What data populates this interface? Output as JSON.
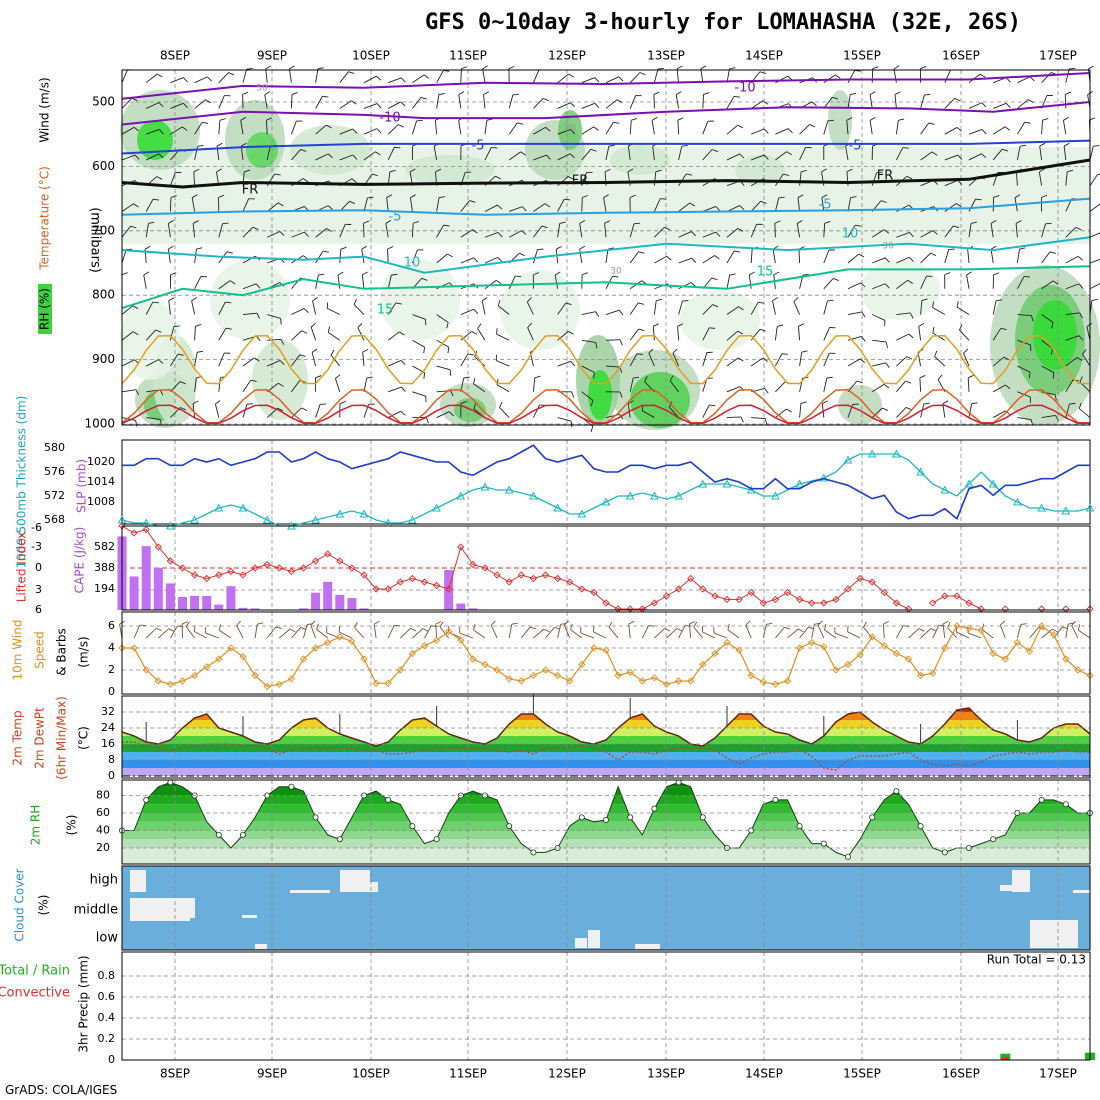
{
  "title": "GFS 0~10day 3-hourly for LOMAHASHA (32E, 26S)",
  "footer": "GrADS: COLA/IGES",
  "run_total_label": "Run Total = 0.13",
  "chart_data": [
    {
      "type": "contour",
      "panel": "upper-air",
      "ylabel": "(millibars)",
      "side_labels": [
        "RH (%)",
        "Temperature (°C)",
        "Wind (m/s)"
      ],
      "x_ticks": [
        "8SEP",
        "9SEP",
        "10SEP",
        "11SEP",
        "12SEP",
        "13SEP",
        "14SEP",
        "15SEP",
        "16SEP",
        "17SEP"
      ],
      "y_ticks": [
        500,
        600,
        700,
        800,
        900,
        1000
      ],
      "ylim": [
        1000,
        450
      ],
      "isotherm_labels": [
        "-10",
        "-10",
        "-5",
        "-5",
        "FR",
        "FR",
        "FR",
        "-5",
        "-5",
        "10",
        "10",
        "15",
        "15",
        "50",
        "30",
        "30",
        "30"
      ]
    },
    {
      "type": "line",
      "panel": "thickness-slp",
      "ylabel_left": "1000-500mb Thickness (dm)",
      "ylabel_right": "SLP (mb)",
      "y_ticks_left": [
        568,
        572,
        576,
        580
      ],
      "y_ticks_right": [
        1008,
        1014,
        1020
      ],
      "series": [
        {
          "name": "SLP (mb)",
          "color": "#1f3ccf",
          "values": [
            1019,
            1019,
            1021,
            1021,
            1019,
            1019,
            1021,
            1020,
            1021,
            1019,
            1020,
            1021,
            1023,
            1023,
            1020,
            1021,
            1023,
            1021,
            1020,
            1018,
            1019,
            1020,
            1021,
            1023,
            1022,
            1021,
            1020,
            1020,
            1017,
            1016,
            1018,
            1020,
            1021,
            1023,
            1025,
            1021,
            1020,
            1021,
            1022,
            1018,
            1017,
            1017,
            1019,
            1019,
            1018,
            1019,
            1019,
            1020,
            1017,
            1014,
            1015,
            1014,
            1012,
            1012,
            1015,
            1012,
            1012,
            1014,
            1015,
            1014,
            1013,
            1011,
            1009,
            1010,
            1005,
            1003,
            1004,
            1004,
            1006,
            1003,
            1012,
            1013,
            1010,
            1013,
            1013,
            1014,
            1015,
            1015,
            1017,
            1019,
            1019
          ]
        },
        {
          "name": "1000-500mb Thickness (dm)",
          "color": "#20b8c0",
          "values": [
            568,
            567.5,
            567.5,
            567,
            567,
            567.5,
            568,
            569,
            570,
            570.5,
            570,
            569,
            568,
            567,
            567,
            567.5,
            568,
            568.5,
            569,
            569.5,
            569,
            568,
            567.5,
            567.5,
            568,
            569,
            570,
            571,
            572,
            573,
            573.5,
            573,
            573,
            572.5,
            572,
            571,
            570,
            569,
            569,
            570,
            571,
            572,
            572,
            572.5,
            572,
            571.5,
            572,
            573,
            574,
            574,
            574,
            573.5,
            573,
            572,
            572,
            573,
            574,
            574.5,
            575,
            576,
            578,
            579,
            579,
            579,
            579,
            578,
            576,
            574,
            573,
            572,
            574,
            576,
            574,
            572,
            571,
            570,
            570,
            569.5,
            569.5,
            569.5,
            570
          ]
        }
      ]
    },
    {
      "type": "bar+line",
      "panel": "cape-li",
      "ylabel_left": "Lifted Index",
      "ylabel_right": "CAPE (J/kg)",
      "li_ticks": [
        "-6",
        "-3",
        "0",
        "3",
        "6"
      ],
      "cape_ticks": [
        194,
        388,
        582
      ],
      "cape_bars": [
        {
          "i": 0,
          "v": 680
        },
        {
          "i": 1,
          "v": 310
        },
        {
          "i": 2,
          "v": 590
        },
        {
          "i": 3,
          "v": 390
        },
        {
          "i": 4,
          "v": 245
        },
        {
          "i": 5,
          "v": 120
        },
        {
          "i": 6,
          "v": 130
        },
        {
          "i": 7,
          "v": 130
        },
        {
          "i": 8,
          "v": 50
        },
        {
          "i": 9,
          "v": 220
        },
        {
          "i": 10,
          "v": 20
        },
        {
          "i": 11,
          "v": 15
        },
        {
          "i": 15,
          "v": 15
        },
        {
          "i": 16,
          "v": 160
        },
        {
          "i": 17,
          "v": 260
        },
        {
          "i": 18,
          "v": 140
        },
        {
          "i": 19,
          "v": 110
        },
        {
          "i": 20,
          "v": 15
        },
        {
          "i": 27,
          "v": 370
        },
        {
          "i": 28,
          "v": 60
        },
        {
          "i": 29,
          "v": 15
        },
        {
          "i": 43,
          "v": 15
        }
      ],
      "lifted_index": [
        -6,
        -5,
        -5.5,
        -3,
        -1,
        0,
        1,
        1.5,
        1,
        0.5,
        1,
        0,
        -0.5,
        0,
        0.5,
        0,
        -1,
        -2,
        -1,
        0,
        1,
        3,
        3,
        2,
        1.5,
        2,
        2.5,
        3,
        -3,
        -0.5,
        0,
        1,
        2,
        1,
        1.5,
        1,
        1.5,
        2,
        3,
        3.5,
        5,
        6,
        6,
        6,
        5,
        4,
        3,
        1.5,
        3,
        4,
        4.5,
        4.5,
        3.5,
        5,
        4.5,
        3.5,
        4.5,
        5,
        5,
        4.5,
        3,
        1.5,
        2,
        3.5,
        5,
        6,
        null,
        5,
        4,
        4,
        5,
        6,
        null,
        6,
        null,
        null,
        6,
        null,
        6,
        null,
        6
      ]
    },
    {
      "type": "line",
      "panel": "wind-10m",
      "ylabel": "10m Wind Speed & Barbs (m/s)",
      "y_ticks": [
        0,
        2,
        4,
        6
      ],
      "values": [
        4,
        4,
        2,
        1,
        0.7,
        1,
        1.5,
        2.3,
        3,
        4,
        3.2,
        1.5,
        0.5,
        0.7,
        1.2,
        3,
        4,
        4.5,
        5,
        4.6,
        3,
        0.8,
        0.8,
        2,
        3.5,
        4.2,
        4.7,
        5.5,
        4.7,
        3,
        2.5,
        2,
        1.2,
        1,
        1.5,
        2,
        1.5,
        1,
        2.5,
        4,
        3.8,
        1.5,
        1.8,
        1,
        1.3,
        0.7,
        1,
        1,
        2.5,
        3.5,
        4.5,
        3.8,
        1.5,
        0.9,
        0.7,
        1,
        4,
        4.5,
        4.1,
        2,
        2.5,
        3.4,
        5,
        4.2,
        3.5,
        3,
        1.5,
        1.7,
        4,
        6,
        5.8,
        5.6,
        3.5,
        3,
        4.5,
        3.7,
        6,
        5.2,
        3,
        2,
        1.5
      ]
    },
    {
      "type": "area",
      "panel": "temp-2m",
      "ylabel": "2m Temp 2m DewPt (6hr Min/Max) (°C)",
      "y_ticks": [
        0,
        8,
        16,
        24,
        32
      ],
      "temperature": [
        22,
        20,
        17,
        16,
        18,
        24,
        29,
        31,
        24,
        22,
        20,
        17,
        16,
        18,
        24,
        28,
        29,
        24,
        21,
        19,
        17,
        15,
        17,
        23,
        28,
        29,
        25,
        21,
        19,
        17,
        16,
        19,
        26,
        31,
        31,
        26,
        22,
        20,
        17,
        16,
        18,
        24,
        29,
        31,
        25,
        22,
        20,
        16,
        15,
        19,
        25,
        31,
        31,
        25,
        22,
        21,
        18,
        16,
        20,
        27,
        31,
        32,
        27,
        23,
        20,
        17,
        16,
        20,
        26,
        33,
        34,
        28,
        23,
        21,
        18,
        17,
        19,
        24,
        26,
        26,
        21
      ],
      "dewpoint": [
        17,
        17,
        15,
        14,
        13,
        14,
        15,
        16,
        16,
        16,
        15,
        15,
        14,
        11,
        13,
        14,
        14,
        14,
        14,
        14,
        13,
        13,
        11,
        11,
        12,
        13,
        14,
        14,
        14,
        14,
        14,
        13,
        12,
        13,
        11,
        14,
        14,
        14,
        15,
        14,
        12,
        8,
        12,
        12,
        11,
        13,
        14,
        14,
        14,
        13,
        9,
        6,
        9,
        11,
        12,
        12,
        13,
        10,
        4,
        3,
        8,
        10,
        10,
        10,
        11,
        12,
        8,
        6,
        5,
        6,
        5,
        7,
        10,
        11,
        12,
        11,
        12,
        12,
        13,
        12,
        12
      ]
    },
    {
      "type": "area",
      "panel": "rh-2m",
      "ylabel": "2m RH (%)",
      "y_ticks": [
        20,
        40,
        60,
        80
      ],
      "values": [
        40,
        40,
        75,
        90,
        95,
        90,
        80,
        50,
        35,
        20,
        35,
        55,
        80,
        90,
        90,
        85,
        55,
        35,
        30,
        55,
        80,
        85,
        75,
        70,
        45,
        25,
        30,
        60,
        80,
        85,
        80,
        75,
        45,
        25,
        15,
        15,
        20,
        45,
        55,
        50,
        52,
        90,
        55,
        35,
        65,
        90,
        95,
        90,
        55,
        35,
        20,
        20,
        40,
        70,
        75,
        75,
        45,
        25,
        25,
        15,
        10,
        30,
        55,
        75,
        85,
        70,
        45,
        20,
        15,
        20,
        20,
        25,
        30,
        35,
        60,
        60,
        75,
        75,
        70,
        60,
        60
      ]
    },
    {
      "type": "heatmap",
      "panel": "cloud-cover",
      "ylabel": "Cloud Cover (%)",
      "y_labels": [
        "high",
        "middle",
        "low"
      ]
    },
    {
      "type": "bar",
      "panel": "precip",
      "ylabel": "3hr Precip (mm)",
      "side_labels": [
        "Total / Rain",
        "Convective"
      ],
      "y_ticks": [
        "0",
        "0.2",
        "0.4",
        "0.6",
        "0.8"
      ],
      "bars": [
        {
          "i": 73,
          "total": 0.06,
          "convective": 0.03
        },
        {
          "i": 80,
          "total": 0.07,
          "convective": 0
        }
      ]
    }
  ]
}
